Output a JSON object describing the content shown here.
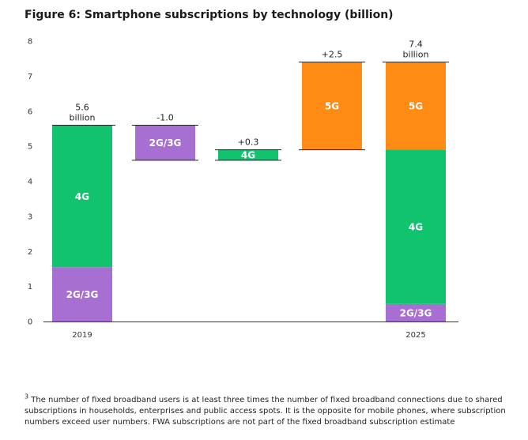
{
  "figure": {
    "title": "Figure 6: Smartphone subscriptions by technology (billion)"
  },
  "chart_data": {
    "type": "bar",
    "subtype": "waterfall",
    "title": "Figure 6: Smartphone subscriptions by technology (billion)",
    "ylim": [
      0,
      8
    ],
    "yticks": [
      0,
      1,
      2,
      3,
      4,
      5,
      6,
      7,
      8
    ],
    "grid": false,
    "colors": {
      "4G": "#12c36e",
      "2G/3G": "#a86fd2",
      "5G": "#ff8b14"
    },
    "bars": [
      {
        "category": "2019",
        "kind": "total",
        "segments": [
          {
            "label": "2G/3G",
            "from": 0,
            "to": 1.55
          },
          {
            "label": "4G",
            "from": 1.55,
            "to": 5.6
          }
        ],
        "top_label": [
          "5.6",
          "billion"
        ]
      },
      {
        "category": "",
        "kind": "change",
        "segments": [
          {
            "label": "2G/3G",
            "from": 4.6,
            "to": 5.6
          }
        ],
        "top_label": [
          "-1.0"
        ]
      },
      {
        "category": "",
        "kind": "change",
        "segments": [
          {
            "label": "4G",
            "from": 4.6,
            "to": 4.9
          }
        ],
        "top_label": [
          "+0.3"
        ]
      },
      {
        "category": "",
        "kind": "change",
        "segments": [
          {
            "label": "5G",
            "from": 4.9,
            "to": 7.4
          }
        ],
        "top_label": [
          "+2.5"
        ]
      },
      {
        "category": "2025",
        "kind": "total",
        "segments": [
          {
            "label": "2G/3G",
            "from": 0,
            "to": 0.5
          },
          {
            "label": "4G",
            "from": 0.5,
            "to": 4.9
          },
          {
            "label": "5G",
            "from": 4.9,
            "to": 7.4
          }
        ],
        "top_label": [
          "7.4",
          "billion"
        ]
      }
    ]
  },
  "footnote": {
    "mark": "3",
    "text": "The number of fixed broadband users is at least three times the number of fixed broadband connections due to shared subscriptions in households, enterprises and public access spots. It is the opposite for mobile phones, where subscription numbers exceed user numbers. FWA subscriptions are not part of the fixed broadband subscription estimate"
  }
}
